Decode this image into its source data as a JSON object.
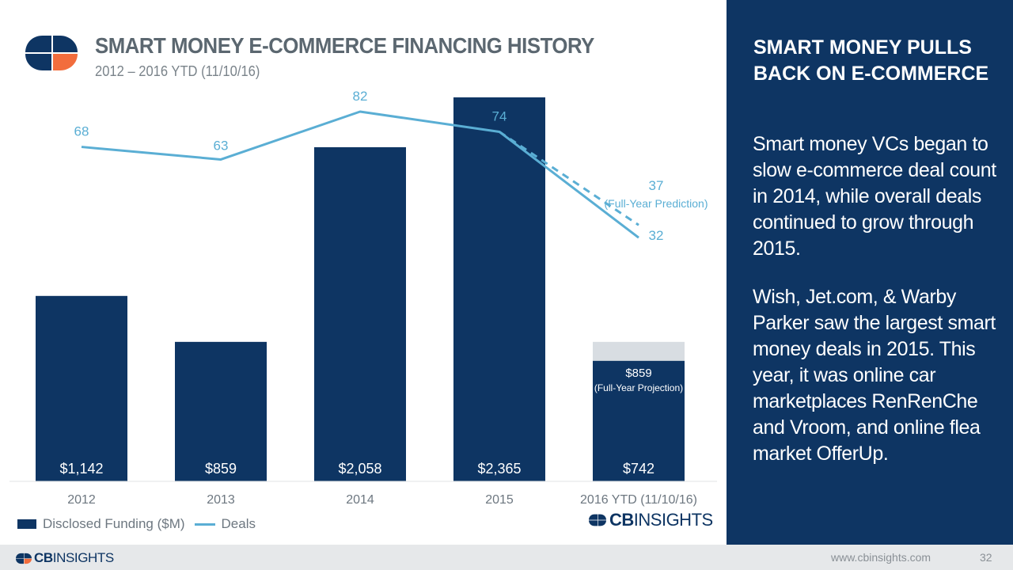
{
  "header": {
    "title": "SMART MONEY E-COMMERCE FINANCING HISTORY",
    "subtitle": "2012 – 2016 YTD (11/10/16)"
  },
  "colors": {
    "navy": "#0e3563",
    "accent_orange": "#f26d3d",
    "line_blue": "#5aaed4",
    "projection_gray": "#d8dde2"
  },
  "chart_data": {
    "type": "bar",
    "title": "SMART MONEY E-COMMERCE FINANCING HISTORY",
    "subtitle": "2012 – 2016 YTD (11/10/16)",
    "categories": [
      "2012",
      "2013",
      "2014",
      "2015",
      "2016 YTD (11/10/16)"
    ],
    "series": [
      {
        "name": "Disclosed Funding ($M)",
        "type": "bar",
        "values": [
          1142,
          859,
          2058,
          2365,
          742
        ],
        "labels": [
          "$1,142",
          "$859",
          "$2,058",
          "$2,365",
          "$742"
        ]
      },
      {
        "name": "Deals",
        "type": "line",
        "values": [
          68,
          63,
          82,
          74,
          32
        ],
        "labels": [
          "68",
          "63",
          "82",
          "74",
          "32"
        ]
      }
    ],
    "projection": {
      "category": "2016 YTD (11/10/16)",
      "funding_value": 859,
      "funding_label": "$859",
      "funding_note": "(Full-Year Projection)",
      "deals_value": 37,
      "deals_label": "37",
      "deals_note": "(Full-Year Prediction)"
    },
    "ylim_funding": [
      0,
      2365
    ],
    "ylim_deals": [
      0,
      82
    ],
    "grid": false,
    "legend_position": "bottom-left"
  },
  "legend": {
    "funding": "Disclosed Funding ($M)",
    "deals": "Deals"
  },
  "brand": {
    "name_bold": "CB",
    "name_light": "INSIGHTS"
  },
  "panel": {
    "heading": "SMART MONEY PULLS BACK ON E-COMMERCE",
    "paragraph1": "Smart money VCs began to slow e-commerce deal count in 2014, while overall deals continued to grow through 2015.",
    "paragraph2": "Wish, Jet.com, & Warby Parker saw the largest smart money deals in 2015. This year, it was online car marketplaces RenRenChe and Vroom, and online flea market OfferUp."
  },
  "footer": {
    "url": "www.cbinsights.com",
    "page": "32"
  }
}
